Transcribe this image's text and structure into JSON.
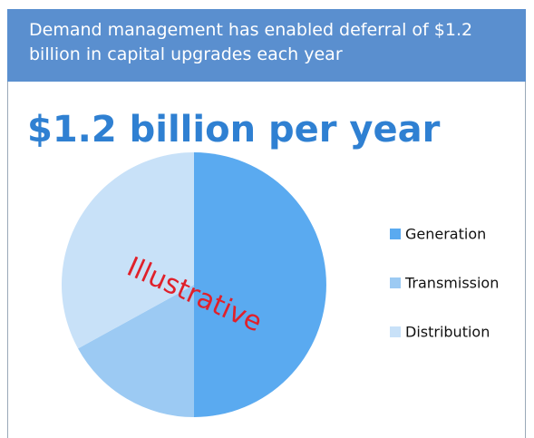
{
  "header": "Demand management has enabled deferral of $1.2 billion in capital upgrades each year",
  "chart_data": {
    "type": "pie",
    "title": "$1.2 billion per year",
    "categories": [
      "Generation",
      "Transmission",
      "Distribution"
    ],
    "values": [
      50,
      17,
      33
    ],
    "colors": [
      "#5aaaf0",
      "#9ccaf3",
      "#c8e1f8"
    ],
    "annotation": "Illustrative",
    "legend": "right"
  }
}
